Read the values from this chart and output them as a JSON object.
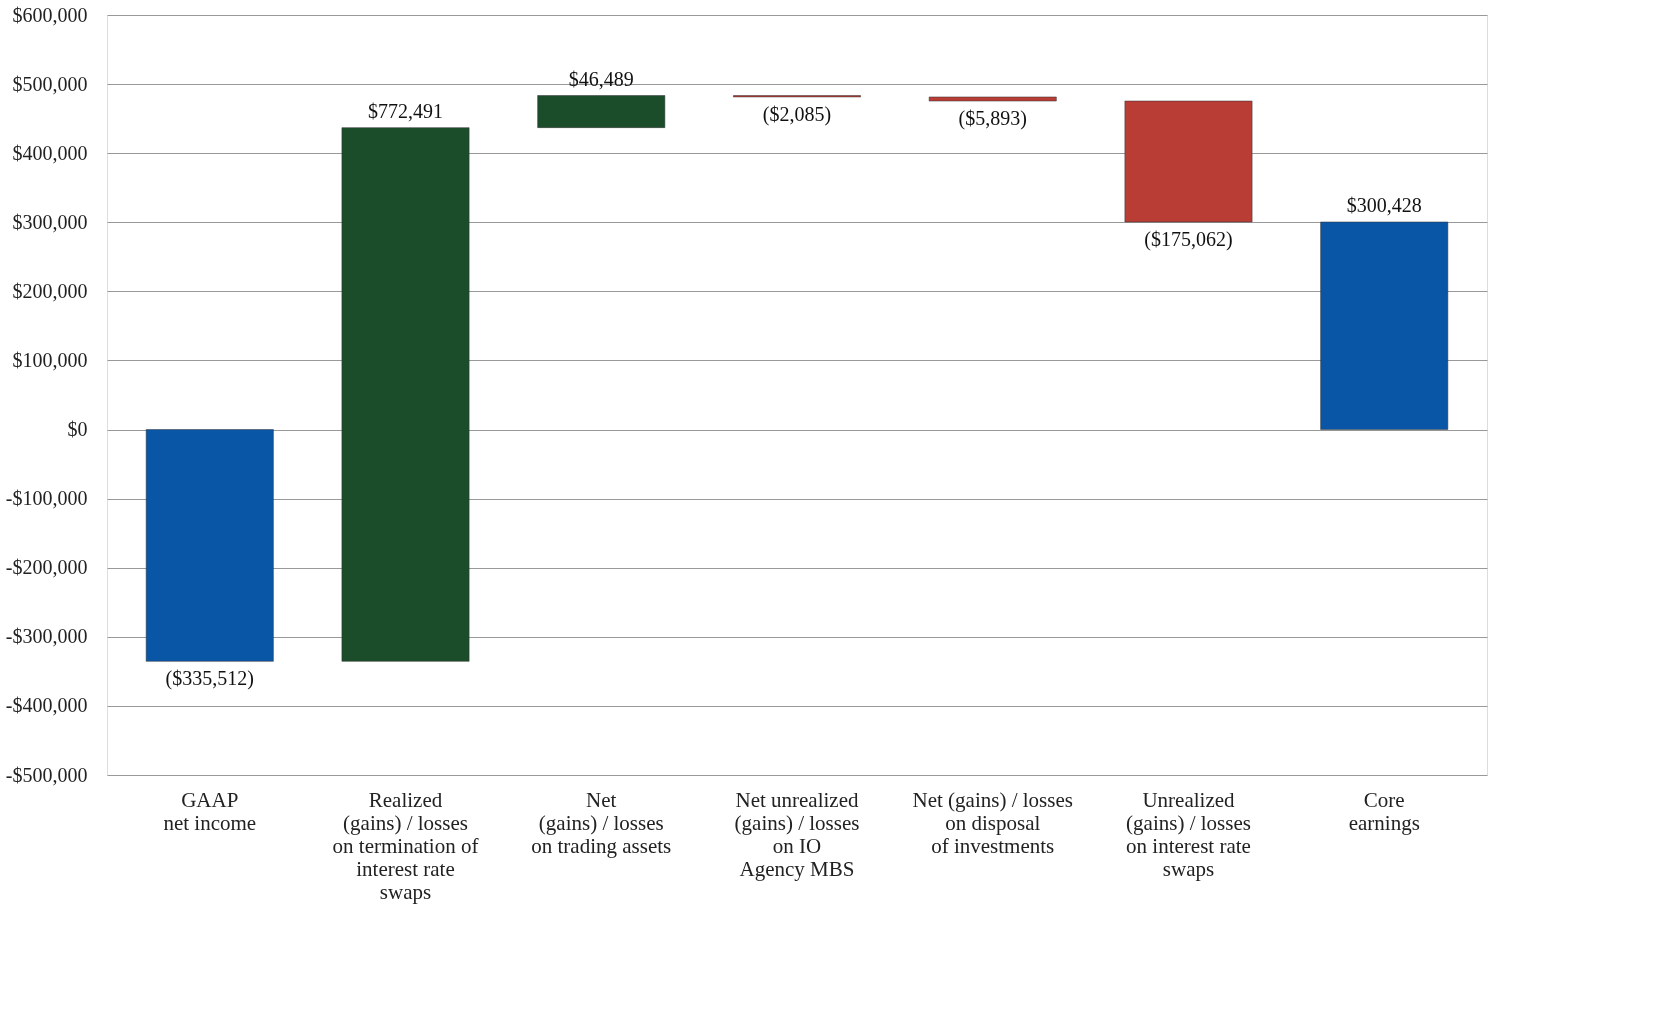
{
  "chart_data": {
    "type": "bar",
    "categories": [
      "GAAP\nnet income",
      "Realized\n(gains) / losses\non termination of\ninterest rate\nswaps",
      "Net\n(gains) / losses\non trading assets",
      "Net unrealized\n(gains) / losses\non IO\nAgency MBS",
      "Net (gains) / losses\non disposal\nof investments",
      "Unrealized\n(gains) / losses\non interest rate\nswaps",
      "Core\nearnings"
    ],
    "values": [
      -335512,
      772491,
      46489,
      -2085,
      -5893,
      -175062,
      300428
    ],
    "base": [
      0,
      -335512,
      436979,
      483468,
      481383,
      475490,
      0
    ],
    "colors": [
      "#0a56a6",
      "#1b4d2b",
      "#1b4d2b",
      "#b93c35",
      "#b93c35",
      "#b93c35",
      "#0a56a6"
    ],
    "value_labels": [
      "($335,512)",
      "$772,491",
      "$46,489",
      "($2,085)",
      "($5,893)",
      "($175,062)",
      "$300,428"
    ],
    "ylim": [
      -500000,
      600000
    ],
    "yticks": [
      {
        "value": -500000,
        "label": "-$500,000"
      },
      {
        "value": -400000,
        "label": "-$400,000"
      },
      {
        "value": -300000,
        "label": "-$300,000"
      },
      {
        "value": -200000,
        "label": "-$200,000"
      },
      {
        "value": -100000,
        "label": "-$100,000"
      },
      {
        "value": 0,
        "label": "$0"
      },
      {
        "value": 100000,
        "label": "$100,000"
      },
      {
        "value": 200000,
        "label": "$200,000"
      },
      {
        "value": 300000,
        "label": "$300,000"
      },
      {
        "value": 400000,
        "label": "$400,000"
      },
      {
        "value": 500000,
        "label": "$500,000"
      },
      {
        "value": 600000,
        "label": "$600,000"
      }
    ],
    "grid": "y"
  }
}
